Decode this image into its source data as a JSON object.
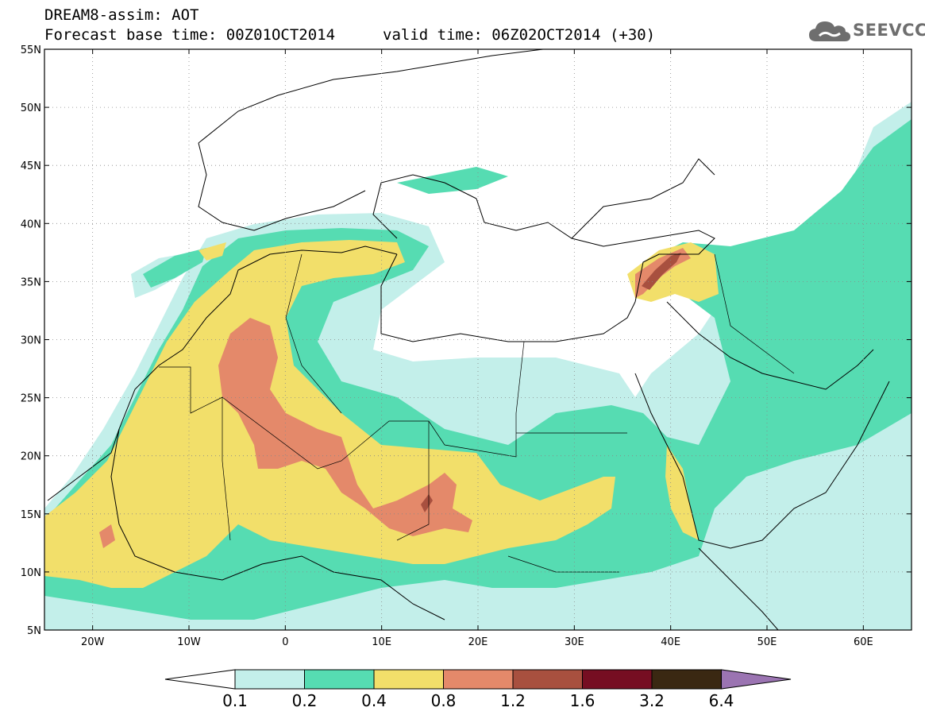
{
  "header": {
    "line1": "DREAM8-assim: AOT",
    "line2_left": "Forecast base time: 00Z01OCT2014",
    "line2_right": "valid time: 06Z02OCT2014 (+30)"
  },
  "logo": {
    "text": "SEEVCCC",
    "icon": "cloud-icon"
  },
  "axes": {
    "lon_ticks": [
      "20W",
      "10W",
      "0",
      "10E",
      "20E",
      "30E",
      "40E",
      "50E",
      "60E"
    ],
    "lon_values": [
      -20,
      -10,
      0,
      10,
      20,
      30,
      40,
      50,
      60
    ],
    "lat_ticks": [
      "55N",
      "50N",
      "45N",
      "40N",
      "35N",
      "30N",
      "25N",
      "20N",
      "15N",
      "10N",
      "5N"
    ],
    "lat_values": [
      55,
      50,
      45,
      40,
      35,
      30,
      25,
      20,
      15,
      10,
      5
    ],
    "lon_range": [
      -25,
      65
    ],
    "lat_range": [
      5,
      55
    ]
  },
  "colorbar": {
    "labels": [
      "0.1",
      "0.2",
      "0.4",
      "0.8",
      "1.2",
      "1.6",
      "3.2",
      "6.4"
    ],
    "colors": [
      "#c3efea",
      "#56dcb2",
      "#f2df6a",
      "#e4896a",
      "#a8503f",
      "#760e22",
      "#3a2812",
      "#9b74b2"
    ],
    "under_color": "#ffffff"
  }
}
